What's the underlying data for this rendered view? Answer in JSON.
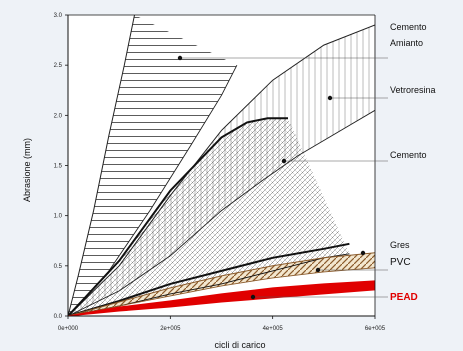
{
  "chart_data": {
    "type": "line",
    "xlabel": "cicli di carico",
    "ylabel": "Abrasione (mm)",
    "x_ticks": [
      "0e+000",
      "2e+005",
      "4e+005",
      "6e+005"
    ],
    "y_ticks": [
      "0.0",
      "0.5",
      "1.0",
      "1.5",
      "2.0",
      "2.5",
      "3.0"
    ],
    "xlim": [
      0,
      600000
    ],
    "ylim": [
      0,
      3.0
    ],
    "grid": false,
    "series": [
      {
        "name": "Cemento Amianto",
        "color": "#222222",
        "fill": "horizontal-hatch",
        "lower": [
          [
            0,
            0
          ],
          [
            80000,
            0.45
          ],
          [
            160000,
            1.05
          ],
          [
            240000,
            1.7
          ],
          [
            300000,
            2.2
          ],
          [
            330000,
            2.5
          ]
        ],
        "upper": [
          [
            0,
            0
          ],
          [
            20000,
            0.4
          ],
          [
            50000,
            1.05
          ],
          [
            80000,
            1.8
          ],
          [
            110000,
            2.5
          ],
          [
            130000,
            3.0
          ]
        ]
      },
      {
        "name": "Vetroresina",
        "color": "#222222",
        "fill": "vertical-hatch",
        "lower": [
          [
            0,
            0
          ],
          [
            100000,
            0.25
          ],
          [
            200000,
            0.6
          ],
          [
            300000,
            1.05
          ],
          [
            380000,
            1.35
          ],
          [
            450000,
            1.6
          ],
          [
            600000,
            2.05
          ]
        ],
        "upper": [
          [
            0,
            0
          ],
          [
            100000,
            0.5
          ],
          [
            200000,
            1.2
          ],
          [
            300000,
            1.85
          ],
          [
            400000,
            2.35
          ],
          [
            500000,
            2.7
          ],
          [
            600000,
            2.9
          ]
        ]
      },
      {
        "name": "Cemento",
        "color": "#111111",
        "fill": "diagonal-hatch",
        "lower": [
          [
            0,
            0
          ],
          [
            100000,
            0.1
          ],
          [
            200000,
            0.22
          ],
          [
            300000,
            0.32
          ],
          [
            400000,
            0.45
          ],
          [
            500000,
            0.58
          ],
          [
            550000,
            0.62
          ]
        ],
        "upper": [
          [
            0,
            0
          ],
          [
            100000,
            0.55
          ],
          [
            200000,
            1.25
          ],
          [
            300000,
            1.78
          ],
          [
            350000,
            1.93
          ],
          [
            390000,
            1.97
          ],
          [
            430000,
            1.97
          ]
        ]
      },
      {
        "name": "Gres",
        "color": "#111111",
        "values": [
          [
            0,
            0
          ],
          [
            100000,
            0.15
          ],
          [
            200000,
            0.32
          ],
          [
            300000,
            0.45
          ],
          [
            400000,
            0.58
          ],
          [
            500000,
            0.67
          ],
          [
            550000,
            0.72
          ]
        ]
      },
      {
        "name": "PVC",
        "color": "#8a5a2b",
        "fill": "cross-hatch",
        "lower": [
          [
            0,
            0
          ],
          [
            100000,
            0.1
          ],
          [
            200000,
            0.2
          ],
          [
            300000,
            0.3
          ],
          [
            400000,
            0.38
          ],
          [
            500000,
            0.44
          ],
          [
            600000,
            0.48
          ]
        ],
        "upper": [
          [
            0,
            0
          ],
          [
            100000,
            0.14
          ],
          [
            200000,
            0.28
          ],
          [
            300000,
            0.4
          ],
          [
            400000,
            0.5
          ],
          [
            500000,
            0.58
          ],
          [
            600000,
            0.63
          ]
        ]
      },
      {
        "name": "PEAD",
        "color": "#e00000",
        "lower": [
          [
            0,
            0
          ],
          [
            100000,
            0.05
          ],
          [
            200000,
            0.09
          ],
          [
            300000,
            0.14
          ],
          [
            400000,
            0.18
          ],
          [
            500000,
            0.22
          ],
          [
            600000,
            0.26
          ]
        ],
        "upper": [
          [
            0,
            0
          ],
          [
            100000,
            0.09
          ],
          [
            200000,
            0.15
          ],
          [
            300000,
            0.22
          ],
          [
            400000,
            0.28
          ],
          [
            500000,
            0.32
          ],
          [
            600000,
            0.35
          ]
        ]
      }
    ],
    "labels": [
      {
        "text": "Cemento",
        "color": "#111111"
      },
      {
        "text": "Amianto",
        "color": "#111111"
      },
      {
        "text": "Vetroresina",
        "color": "#111111"
      },
      {
        "text": "Cemento",
        "color": "#111111"
      },
      {
        "text": "Gres",
        "color": "#111111"
      },
      {
        "text": "PVC",
        "color": "#111111"
      },
      {
        "text": "PEAD",
        "color": "#e00000"
      }
    ]
  }
}
